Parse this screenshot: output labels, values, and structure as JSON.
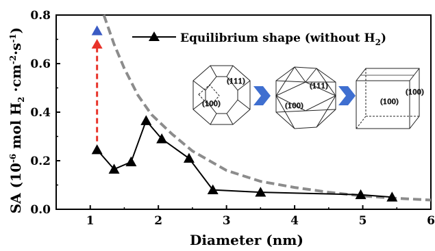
{
  "chart_data": {
    "type": "line",
    "title": "",
    "xlabel": "Diameter (nm)",
    "ylabel_parts": {
      "main": "SA (10",
      "exp1": "-6",
      "mid1": "mol H",
      "sub1": "2",
      "mid2": "·cm",
      "exp2": "-2",
      "mid3": "·s",
      "exp3": "-1",
      "end": ")"
    },
    "xlim": [
      0.5,
      6
    ],
    "ylim": [
      0,
      0.8
    ],
    "xticks": [
      1,
      2,
      3,
      4,
      5,
      6
    ],
    "yticks": [
      0.0,
      0.2,
      0.4,
      0.6,
      0.8
    ],
    "legend_position": "top-right",
    "series": [
      {
        "name_main": "Equilibrium shape (without H",
        "name_sub": "2",
        "name_end": ")",
        "marker": "triangle",
        "color": "#000000",
        "x": [
          1.1,
          1.35,
          1.6,
          1.82,
          2.05,
          2.45,
          2.8,
          3.5,
          4.97,
          5.43
        ],
        "y": [
          0.245,
          0.165,
          0.195,
          0.365,
          0.29,
          0.21,
          0.08,
          0.07,
          0.06,
          0.05
        ]
      }
    ],
    "extra_point": {
      "x": 1.1,
      "y": 0.735,
      "color": "#3b5bc4"
    },
    "arrow": {
      "x": 1.1,
      "y_from": 0.28,
      "y_to": 0.69,
      "color": "#e8332a"
    },
    "fit_curve": {
      "color": "#8c8c8c",
      "x": [
        1.2,
        1.35,
        1.5,
        1.7,
        1.9,
        2.2,
        2.5,
        3.0,
        3.5,
        4.0,
        4.5,
        5.0,
        5.5,
        6.0
      ],
      "y": [
        0.8,
        0.68,
        0.58,
        0.47,
        0.39,
        0.31,
        0.24,
        0.16,
        0.115,
        0.09,
        0.07,
        0.055,
        0.045,
        0.038
      ]
    },
    "insets": [
      {
        "name": "truncated-octahedron",
        "facet_labels": [
          "(111)",
          "(100)"
        ]
      },
      {
        "name": "cuboctahedron",
        "facet_labels": [
          "(111)",
          "(100)"
        ]
      },
      {
        "name": "cube",
        "facet_labels": [
          "(100)",
          "(100)"
        ]
      }
    ],
    "inset_arrow_color": "#3f6fd0"
  }
}
